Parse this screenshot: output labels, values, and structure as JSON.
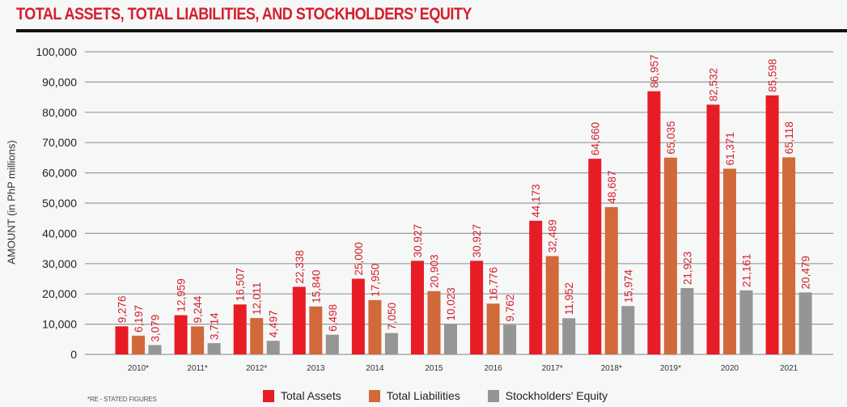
{
  "chart_data": {
    "type": "bar",
    "title": "TOTAL ASSETS, TOTAL LIABILITIES, AND STOCKHOLDERS’ EQUITY",
    "xlabel": "",
    "ylabel": "AMOUNT (in PhP millions)",
    "ylim": [
      0,
      100000
    ],
    "yticks": [
      0,
      10000,
      20000,
      30000,
      40000,
      50000,
      60000,
      70000,
      80000,
      90000,
      100000
    ],
    "ytick_labels": [
      "0",
      "10,000",
      "20,000",
      "30,000",
      "40,000",
      "50,000",
      "60,000",
      "70,000",
      "80,000",
      "90,000",
      "100,000"
    ],
    "grid": true,
    "legend_position": "bottom",
    "categories": [
      "2010*",
      "2011*",
      "2012*",
      "2013",
      "2014",
      "2015",
      "2016",
      "2017*",
      "2018*",
      "2019*",
      "2020",
      "2021"
    ],
    "series": [
      {
        "name": "Total Assets",
        "color": "#e81c25",
        "values": [
          9276,
          12959,
          16507,
          22338,
          25000,
          30927,
          30927,
          44173,
          64660,
          86957,
          82532,
          85598
        ],
        "labels": [
          "9,276",
          "12,959",
          "16,507",
          "22,338",
          "25,000",
          "30,927",
          "30,927",
          "44,173",
          "64,660",
          "86,957",
          "82,532",
          "85,598"
        ]
      },
      {
        "name": "Total Liabilities",
        "color": "#d2693a",
        "values": [
          6197,
          9244,
          12011,
          15840,
          17950,
          20903,
          16776,
          32489,
          48687,
          65035,
          61371,
          65118
        ],
        "labels": [
          "6,197",
          "9,244",
          "12,011",
          "15,840",
          "17,950",
          "20,903",
          "16,776",
          "32,489",
          "48,687",
          "65,035",
          "61,371",
          "65,118"
        ]
      },
      {
        "name": "Stockholders' Equity",
        "color": "#959595",
        "values": [
          3079,
          3714,
          4497,
          6498,
          7050,
          10023,
          9762,
          11952,
          15974,
          21923,
          21161,
          20479
        ],
        "labels": [
          "3,079",
          "3,714",
          "4,497",
          "6,498",
          "7,050",
          "10,023",
          "9,762",
          "11,952",
          "15,974",
          "21,923",
          "21,161",
          "20,479"
        ]
      }
    ],
    "data_label_color": "#d4202c",
    "footnote": "*RE - STATED FIGURES"
  }
}
